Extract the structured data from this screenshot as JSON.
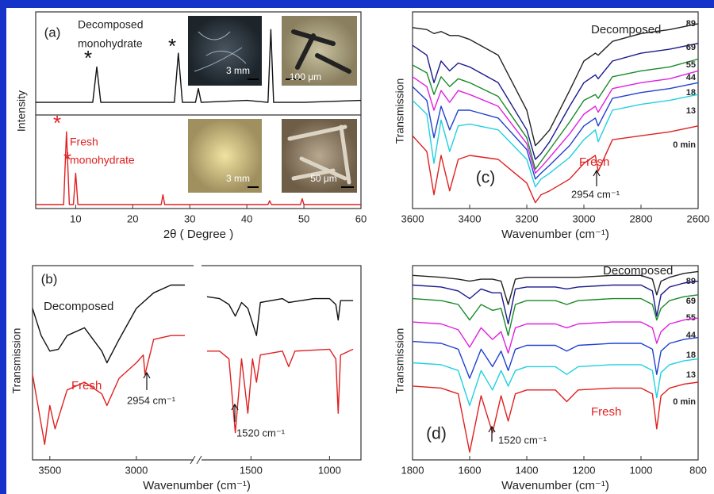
{
  "chart_data": [
    {
      "type": "line",
      "panel": "(a)",
      "xlabel": "2θ ( Degree )",
      "ylabel": "Intensity",
      "xlim": [
        3,
        60
      ],
      "xticks": [
        10,
        20,
        30,
        40,
        50,
        60
      ],
      "ylim": [
        0,
        100
      ],
      "annotations": [
        "Decomposed",
        "monohydrate",
        "Fresh",
        "monohydrate",
        "*",
        "*",
        "*",
        "*",
        "3 mm",
        "100 μm",
        "3 mm",
        "50 μm"
      ],
      "series": [
        {
          "color": "#111111",
          "x": [
            3,
            8,
            13,
            13.7,
            14.4,
            20,
            27.3,
            28,
            28.7,
            31,
            31.5,
            32,
            40,
            43.7,
            44.2,
            44.7,
            50,
            60
          ],
          "values": [
            54,
            54,
            54,
            72,
            54,
            54,
            54,
            79,
            54,
            54,
            61,
            54,
            55,
            54,
            91,
            54,
            54,
            55
          ]
        },
        {
          "color": "#e02020",
          "x": [
            3,
            7.9,
            8.4,
            8.9,
            9.6,
            10,
            10.4,
            20,
            25,
            25.3,
            25.6,
            43.7,
            44,
            44.3,
            49.4,
            49.7,
            50,
            60
          ],
          "values": [
            2,
            2,
            39,
            2,
            2,
            18,
            2,
            2,
            2,
            7,
            2,
            2,
            4,
            2,
            2,
            5,
            2,
            2
          ]
        }
      ]
    },
    {
      "type": "line",
      "panel": "(b)",
      "xlabel": "Wavenumber (cm⁻¹)",
      "ylabel": "Transmission",
      "xsegments": [
        [
          3600,
          2665
        ],
        [
          1825,
          800
        ]
      ],
      "xticks": [
        3500,
        3000,
        1500,
        1000
      ],
      "ylim": [
        0,
        100
      ],
      "annotations": [
        "Decomposed",
        "Fresh",
        "2954 cm⁻¹",
        "1520 cm⁻¹"
      ],
      "series": [
        {
          "color": "#111111",
          "x": [
            3600,
            3550,
            3500,
            3450,
            3400,
            3300,
            3200,
            3170,
            3100,
            3000,
            2900,
            2800,
            2720
          ],
          "values": [
            78,
            64,
            56,
            57,
            64,
            68,
            56,
            50,
            62,
            78,
            86,
            90,
            90
          ]
        },
        {
          "color": "#e02020",
          "x": [
            3600,
            3530,
            3500,
            3470,
            3400,
            3300,
            3200,
            3170,
            3100,
            3000,
            2960,
            2950,
            2900,
            2800,
            2720
          ],
          "values": [
            44,
            8,
            28,
            16,
            36,
            40,
            34,
            28,
            42,
            50,
            54,
            44,
            62,
            64,
            64
          ]
        },
        {
          "color": "#111111",
          "x": [
            1780,
            1700,
            1640,
            1600,
            1560,
            1520,
            1465,
            1440,
            1300,
            1260,
            1100,
            1000,
            960,
            945,
            930,
            850
          ],
          "values": [
            84,
            83,
            80,
            74,
            81,
            78,
            64,
            81,
            83,
            81,
            83,
            83,
            80,
            72,
            82,
            82
          ]
        },
        {
          "color": "#e02020",
          "x": [
            1780,
            1700,
            1640,
            1600,
            1560,
            1520,
            1490,
            1465,
            1440,
            1300,
            1260,
            1220,
            1000,
            960,
            945,
            930,
            850
          ],
          "values": [
            56,
            56,
            52,
            14,
            52,
            24,
            52,
            40,
            54,
            56,
            48,
            56,
            57,
            52,
            24,
            54,
            57
          ]
        }
      ]
    },
    {
      "type": "line",
      "panel": "(c)",
      "xlabel": "Wavenumber (cm⁻¹)",
      "ylabel": "Transmission",
      "xlim": [
        3600,
        2600
      ],
      "xticks": [
        3600,
        3400,
        3200,
        3000,
        2800,
        2600
      ],
      "ylim": [
        0,
        100
      ],
      "annotations": [
        "Decomposed",
        "Fresh",
        "2954 cm⁻¹"
      ],
      "x": [
        3600,
        3550,
        3525,
        3500,
        3470,
        3440,
        3400,
        3300,
        3200,
        3170,
        3150,
        3120,
        3050,
        3000,
        2960,
        2950,
        2900,
        2800,
        2700,
        2600
      ],
      "series": [
        {
          "name": "89",
          "color": "#222222",
          "values": [
            92,
            91,
            89,
            90,
            88,
            88,
            86,
            78,
            50,
            32,
            35,
            40,
            60,
            75,
            79,
            78,
            85,
            89,
            91,
            94
          ]
        },
        {
          "name": "69",
          "color": "#1a1a8c",
          "values": [
            83,
            78,
            64,
            75,
            70,
            74,
            72,
            64,
            40,
            25,
            28,
            34,
            52,
            64,
            68,
            66,
            75,
            79,
            81,
            84
          ]
        },
        {
          "name": "55",
          "color": "#1a8a2a",
          "values": [
            73,
            69,
            58,
            67,
            62,
            66,
            64,
            57,
            36,
            20,
            24,
            30,
            44,
            55,
            58,
            56,
            67,
            70,
            72,
            76
          ]
        },
        {
          "name": "44",
          "color": "#e020e0",
          "values": [
            67,
            62,
            50,
            60,
            54,
            60,
            58,
            52,
            33,
            18,
            21,
            26,
            38,
            48,
            52,
            49,
            61,
            64,
            66,
            70
          ]
        },
        {
          "name": "18",
          "color": "#2040d0",
          "values": [
            62,
            55,
            36,
            52,
            40,
            50,
            50,
            46,
            30,
            15,
            18,
            22,
            32,
            42,
            46,
            42,
            56,
            59,
            61,
            64
          ]
        },
        {
          "name": "13",
          "color": "#20d0e0",
          "values": [
            55,
            48,
            23,
            45,
            29,
            42,
            43,
            40,
            25,
            11,
            15,
            18,
            26,
            35,
            40,
            34,
            50,
            53,
            55,
            58
          ]
        },
        {
          "name": "0 min",
          "color": "#e02020",
          "values": [
            37,
            29,
            7,
            27,
            9,
            25,
            27,
            25,
            13,
            3,
            7,
            9,
            15,
            23,
            27,
            19,
            35,
            37,
            39,
            42
          ]
        }
      ]
    },
    {
      "type": "line",
      "panel": "(d)",
      "xlabel": "Wavenumber (cm⁻¹)",
      "ylabel": "Transmission",
      "xlim": [
        1800,
        800
      ],
      "xticks": [
        1800,
        1600,
        1400,
        1200,
        1000,
        800
      ],
      "ylim": [
        0,
        100
      ],
      "annotations": [
        "Decomposed",
        "Fresh",
        "1520 cm⁻¹"
      ],
      "x": [
        1800,
        1700,
        1640,
        1600,
        1560,
        1520,
        1490,
        1465,
        1440,
        1400,
        1300,
        1260,
        1220,
        1100,
        1000,
        960,
        945,
        930,
        900,
        850,
        800
      ],
      "series": [
        {
          "name": "89",
          "color": "#222222",
          "values": [
            95,
            94,
            93,
            92,
            93,
            93,
            92,
            80,
            93,
            94,
            94,
            94,
            94,
            95,
            95,
            93,
            85,
            92,
            94,
            96,
            97
          ]
        },
        {
          "name": "69",
          "color": "#1a1a8c",
          "values": [
            90,
            89,
            87,
            83,
            88,
            86,
            86,
            70,
            88,
            89,
            89,
            88,
            89,
            90,
            90,
            87,
            74,
            85,
            89,
            91,
            92
          ]
        },
        {
          "name": "55",
          "color": "#1a8a2a",
          "values": [
            83,
            82,
            80,
            72,
            80,
            77,
            78,
            64,
            80,
            82,
            82,
            80,
            82,
            83,
            83,
            80,
            72,
            78,
            82,
            84,
            85
          ]
        },
        {
          "name": "44",
          "color": "#e020e0",
          "values": [
            71,
            70,
            67,
            58,
            68,
            62,
            66,
            55,
            68,
            70,
            70,
            68,
            70,
            71,
            71,
            68,
            60,
            66,
            70,
            72,
            73
          ]
        },
        {
          "name": "18",
          "color": "#2040d0",
          "values": [
            61,
            60,
            57,
            42,
            57,
            48,
            56,
            46,
            57,
            59,
            59,
            56,
            59,
            60,
            60,
            57,
            44,
            56,
            60,
            62,
            63
          ]
        },
        {
          "name": "13",
          "color": "#20d0e0",
          "values": [
            50,
            49,
            46,
            28,
            46,
            36,
            46,
            38,
            46,
            48,
            48,
            44,
            48,
            49,
            49,
            46,
            32,
            45,
            49,
            51,
            52
          ]
        },
        {
          "name": "0 min",
          "color": "#e02020",
          "values": [
            38,
            37,
            34,
            4,
            33,
            14,
            33,
            20,
            34,
            36,
            36,
            30,
            36,
            37,
            37,
            34,
            16,
            33,
            37,
            39,
            40
          ]
        }
      ]
    }
  ]
}
